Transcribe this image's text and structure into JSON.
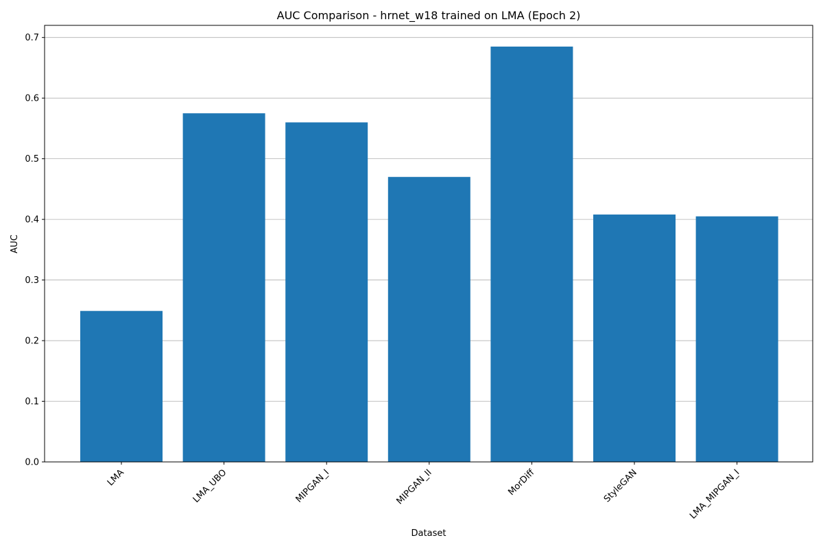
{
  "chart_data": {
    "type": "bar",
    "title": "AUC Comparison - hrnet_w18 trained on LMA (Epoch 2)",
    "xlabel": "Dataset",
    "ylabel": "AUC",
    "categories": [
      "LMA",
      "LMA_UBO",
      "MIPGAN_I",
      "MIPGAN_II",
      "MorDiff",
      "StyleGAN",
      "LMA_MIPGAN_I"
    ],
    "values": [
      0.249,
      0.575,
      0.56,
      0.47,
      0.685,
      0.408,
      0.405
    ],
    "ylim": [
      0,
      0.72
    ],
    "yticks": [
      "0.0",
      "0.1",
      "0.2",
      "0.3",
      "0.4",
      "0.5",
      "0.6",
      "0.7"
    ],
    "grid": "y-axis major",
    "legend": "none",
    "bar_color": "#1f77b4"
  }
}
